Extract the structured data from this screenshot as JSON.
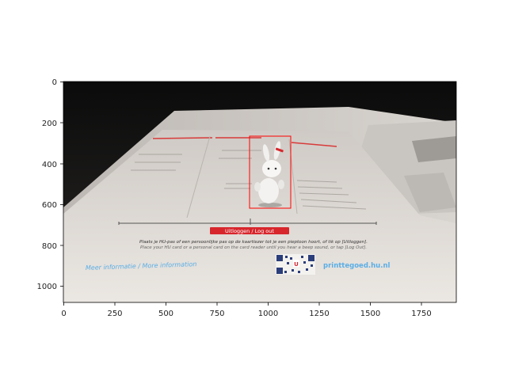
{
  "figure": {
    "x_ticks": [
      "0",
      "250",
      "500",
      "750",
      "1000",
      "1250",
      "1500",
      "1750"
    ],
    "y_ticks": [
      "0",
      "200",
      "400",
      "600",
      "800",
      "1000"
    ]
  },
  "photo": {
    "banner_label": "Uitloggen / Log out",
    "instruction_nl": "Plaats je HU-pas of een persoonlijke pas op de kaartlezer tot je een pieptoon hoort, of tik op [Uitloggen].",
    "instruction_en": "Place your HU card or a personal card on the card reader until you hear a beep sound, or tap [Log Out].",
    "more_info": "Meer informatie / More information",
    "site": "printtegoed.hu.nl",
    "qr_letter": "U"
  },
  "colors": {
    "box": "#ff0000",
    "banner": "#d7262c",
    "link": "#5aaee6"
  }
}
